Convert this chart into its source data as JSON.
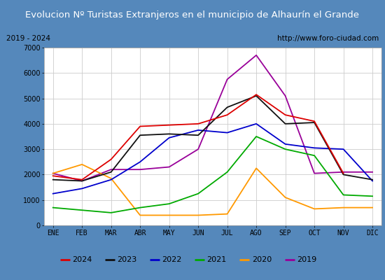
{
  "title": "Evolucion Nº Turistas Extranjeros en el municipio de Alhaurín el Grande",
  "subtitle_left": "2019 - 2024",
  "subtitle_right": "http://www.foro-ciudad.com",
  "months": [
    "ENE",
    "FEB",
    "MAR",
    "ABR",
    "MAY",
    "JUN",
    "JUL",
    "AGO",
    "SEP",
    "OCT",
    "NOV",
    "DIC"
  ],
  "series": {
    "2024": [
      1950,
      1800,
      2600,
      3900,
      3950,
      4000,
      4350,
      5150,
      4350,
      4100,
      2050,
      null
    ],
    "2023": [
      1800,
      1750,
      2100,
      3550,
      3600,
      3550,
      4650,
      5100,
      4000,
      4050,
      2000,
      1800
    ],
    "2022": [
      1250,
      1450,
      1800,
      2500,
      3450,
      3750,
      3650,
      4000,
      3200,
      3050,
      3000,
      1750
    ],
    "2021": [
      700,
      600,
      500,
      700,
      850,
      1250,
      2100,
      3500,
      3000,
      2750,
      1200,
      1150
    ],
    "2020": [
      2050,
      2400,
      1850,
      400,
      400,
      400,
      450,
      2250,
      1100,
      650,
      700,
      700
    ],
    "2019": [
      2050,
      1750,
      2200,
      2200,
      2300,
      3000,
      5750,
      6700,
      5100,
      2050,
      2100,
      2100
    ]
  },
  "colors": {
    "2024": "#dd0000",
    "2023": "#111111",
    "2022": "#0000cc",
    "2021": "#00aa00",
    "2020": "#ff9900",
    "2019": "#990099"
  },
  "ylim": [
    0,
    7000
  ],
  "yticks": [
    0,
    1000,
    2000,
    3000,
    4000,
    5000,
    6000,
    7000
  ],
  "title_bg_color": "#4a7fb5",
  "title_text_color": "#ffffff",
  "plot_bg_color": "#ffffff",
  "grid_color": "#cccccc",
  "outer_bg_color": "#5588bb",
  "subtitle_box_color": "#ffffff",
  "legend_box_color": "#ffffff"
}
